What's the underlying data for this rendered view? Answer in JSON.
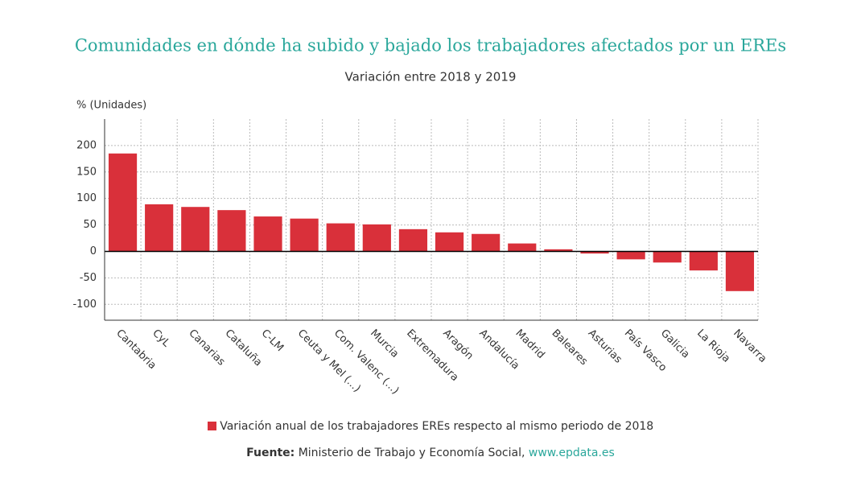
{
  "chart_data": {
    "type": "bar",
    "title": "Comunidades en dónde ha subido y bajado los trabajadores afectados por un EREs",
    "subtitle": "Variación entre 2018 y 2019",
    "ylabel": "% (Unidades)",
    "categories": [
      "Cantabria",
      "CyL",
      "Canarias",
      "Cataluña",
      "C-LM",
      "Ceuta y Mel (...)",
      "Com. Valenc (...)",
      "Murcia",
      "Extremadura",
      "Aragón",
      "Andalucía",
      "Madrid",
      "Baleares",
      "Asturias",
      "País Vasco",
      "Galicia",
      "La Rioja",
      "Navarra"
    ],
    "series": [
      {
        "name": "Variación anual de los trabajadores EREs respecto al mismo periodo de 2018",
        "color": "#d9303a",
        "values": [
          185,
          89,
          84,
          78,
          66,
          62,
          53,
          51,
          42,
          36,
          33,
          15,
          4,
          -4,
          -15,
          -21,
          -36,
          -75
        ]
      }
    ],
    "ylim": [
      -130,
      250
    ],
    "yticks": [
      -100,
      -50,
      0,
      50,
      100,
      150,
      200
    ],
    "grid": true,
    "source_label": "Fuente:",
    "source_text": "Ministerio de Trabajo y Economía Social,",
    "source_link": "www.epdata.es"
  }
}
